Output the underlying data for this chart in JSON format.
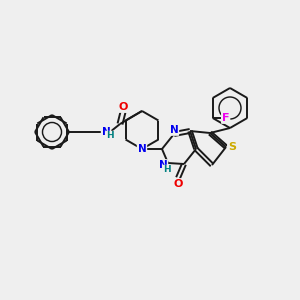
{
  "background_color": "#efefef",
  "bond_color": "#1a1a1a",
  "atom_colors": {
    "N": "#0000ee",
    "O": "#ee0000",
    "S": "#ccaa00",
    "F": "#ee00ee",
    "NH": "#008080",
    "C": "#1a1a1a"
  },
  "lw": 1.4,
  "fs": 7.0,
  "figsize": [
    3.0,
    3.0
  ],
  "dpi": 100,
  "xlim": [
    0,
    300
  ],
  "ylim": [
    0,
    300
  ]
}
